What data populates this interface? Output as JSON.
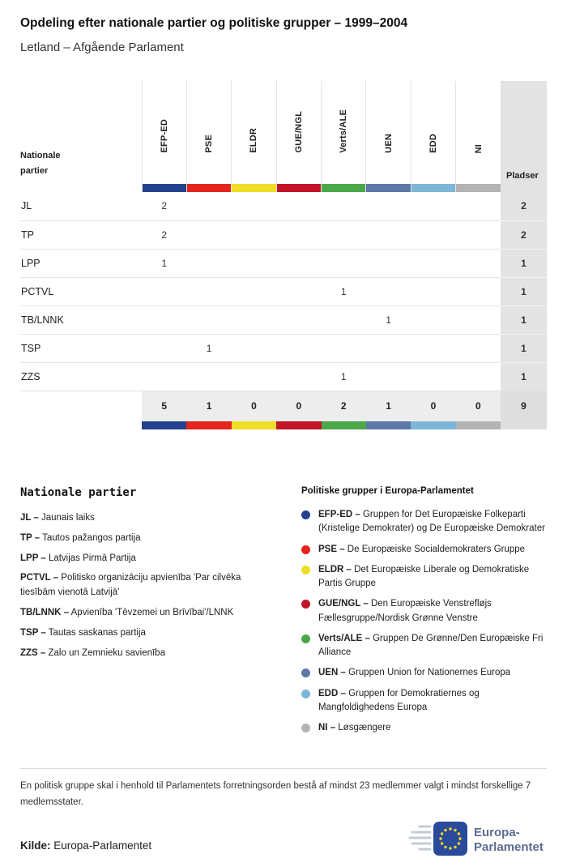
{
  "header": {
    "title": "Opdeling efter nationale partier og politiske grupper – 1999–2004",
    "subtitle": "Letland – Afgående Parlament"
  },
  "chart_data": {
    "type": "table",
    "title": "Opdeling efter nationale partier og politiske grupper – 1999–2004",
    "subtitle": "Letland – Afgående Parlament",
    "row_header": "Nationale partier",
    "seats_header": "Pladser",
    "groups": [
      {
        "id": "EFP-ED",
        "color": "#23418d"
      },
      {
        "id": "PSE",
        "color": "#e3251d"
      },
      {
        "id": "ELDR",
        "color": "#eede26"
      },
      {
        "id": "GUE/NGL",
        "color": "#c31428"
      },
      {
        "id": "Verts/ALE",
        "color": "#4aa849"
      },
      {
        "id": "UEN",
        "color": "#5d78a6"
      },
      {
        "id": "EDD",
        "color": "#7eb6d7"
      },
      {
        "id": "NI",
        "color": "#b3b3b3"
      }
    ],
    "rows": [
      {
        "party": "JL",
        "values": [
          "2",
          "",
          "",
          "",
          "",
          "",
          "",
          ""
        ],
        "seats": "2"
      },
      {
        "party": "TP",
        "values": [
          "2",
          "",
          "",
          "",
          "",
          "",
          "",
          ""
        ],
        "seats": "2"
      },
      {
        "party": "LPP",
        "values": [
          "1",
          "",
          "",
          "",
          "",
          "",
          "",
          ""
        ],
        "seats": "1"
      },
      {
        "party": "PCTVL",
        "values": [
          "",
          "",
          "",
          "",
          "1",
          "",
          "",
          ""
        ],
        "seats": "1"
      },
      {
        "party": "TB/LNNK",
        "values": [
          "",
          "",
          "",
          "",
          "",
          "1",
          "",
          ""
        ],
        "seats": "1"
      },
      {
        "party": "TSP",
        "values": [
          "",
          "1",
          "",
          "",
          "",
          "",
          "",
          ""
        ],
        "seats": "1"
      },
      {
        "party": "ZZS",
        "values": [
          "",
          "",
          "",
          "",
          "1",
          "",
          "",
          ""
        ],
        "seats": "1"
      }
    ],
    "totals": {
      "values": [
        "5",
        "1",
        "0",
        "0",
        "2",
        "1",
        "0",
        "0"
      ],
      "seats": "9"
    }
  },
  "legend_parties": {
    "title": "Nationale partier",
    "items": [
      {
        "abbr": "JL",
        "name": "Jaunais laiks"
      },
      {
        "abbr": "TP",
        "name": "Tautos pažangos partija"
      },
      {
        "abbr": "LPP",
        "name": "Latvijas Pirmā Partija"
      },
      {
        "abbr": "PCTVL",
        "name": "Politisko organizāciju apvienība 'Par cilvēka tiesībām vienotā Latvijā'"
      },
      {
        "abbr": "TB/LNNK",
        "name": "Apvienība 'Tēvzemei un Brīvībai'/LNNK"
      },
      {
        "abbr": "TSP",
        "name": "Tautas saskanas partija"
      },
      {
        "abbr": "ZZS",
        "name": "Zalo un Zemnieku savienība"
      }
    ]
  },
  "legend_groups": {
    "title": "Politiske grupper i Europa-Parlamentet",
    "items": [
      {
        "abbr": "EFP-ED",
        "name": "Gruppen for Det Europæiske Folkeparti (Kristelige Demokrater) og De Europæiske Demokrater"
      },
      {
        "abbr": "PSE",
        "name": "De Europæiske Socialdemokraters Gruppe"
      },
      {
        "abbr": "ELDR",
        "name": "Det Europæiske Liberale og Demokratiske Partis Gruppe"
      },
      {
        "abbr": "GUE/NGL",
        "name": "Den Europæiske Venstrefløjs Fællesgruppe/Nordisk Grønne Venstre"
      },
      {
        "abbr": "Verts/ALE",
        "name": "Gruppen De Grønne/Den Europæiske Fri Alliance"
      },
      {
        "abbr": "UEN",
        "name": "Gruppen Union for Nationernes Europa"
      },
      {
        "abbr": "EDD",
        "name": "Gruppen for Demokratiernes og Mangfoldighedens Europa"
      },
      {
        "abbr": "NI",
        "name": "Løsgængere"
      }
    ]
  },
  "footer": {
    "note": "En politisk gruppe skal i henhold til Parlamentets forretningsorden bestå af mindst 23 medlemmer valgt i mindst forskellige 7 medlemsstater.",
    "source_label": "Kilde:",
    "source": "Europa-Parlamentet",
    "logo": {
      "line1": "Europa-",
      "line2": "Parlamentet"
    }
  }
}
